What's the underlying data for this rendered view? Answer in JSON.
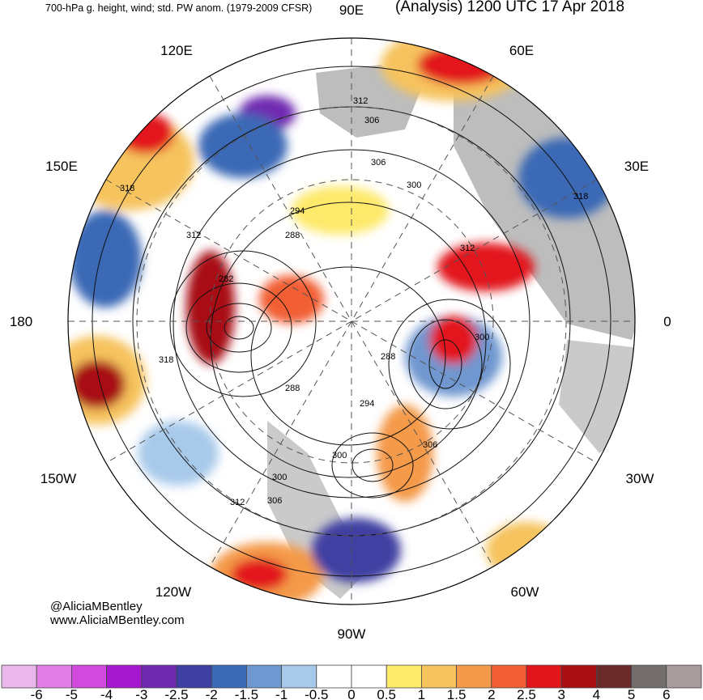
{
  "header": {
    "left": "700-hPa g. height, wind; std. PW anom. (1979-2009 CFSR)",
    "right": "(Analysis) 1200 UTC 17 Apr 2018"
  },
  "longitude_labels": {
    "top": "90E",
    "top_left": "120E",
    "top_right": "60E",
    "upper_left": "150E",
    "upper_right": "30E",
    "left": "180",
    "right": "0",
    "lower_left": "150W",
    "lower_right": "30W",
    "bottom_left": "120W",
    "bottom_right": "60W",
    "bottom": "90W"
  },
  "contour_labels": [
    {
      "text": "312"
    },
    {
      "text": "306"
    },
    {
      "text": "306"
    },
    {
      "text": "300"
    },
    {
      "text": "318"
    },
    {
      "text": "294"
    },
    {
      "text": "288"
    },
    {
      "text": "312"
    },
    {
      "text": "282"
    },
    {
      "text": "318"
    },
    {
      "text": "312"
    },
    {
      "text": "318"
    },
    {
      "text": "288"
    },
    {
      "text": "288"
    },
    {
      "text": "294"
    },
    {
      "text": "300"
    },
    {
      "text": "306"
    },
    {
      "text": "300"
    },
    {
      "text": "306"
    },
    {
      "text": "312"
    },
    {
      "text": "300"
    },
    {
      "text": "306"
    }
  ],
  "credits": {
    "handle": "@AliciaMBentley",
    "website": "www.AliciaMBentley.com"
  },
  "colorbar": {
    "labels": [
      "-6",
      "-5",
      "-4",
      "-3",
      "-2.5",
      "-2",
      "-1.5",
      "-1",
      "-0.5",
      "0",
      "0.5",
      "1",
      "1.5",
      "2",
      "2.5",
      "3",
      "4",
      "5",
      "6"
    ],
    "colors": [
      "#e9b7ea",
      "#e27fe6",
      "#d249e0",
      "#a419cf",
      "#6f29b1",
      "#3f3fa3",
      "#3b69b6",
      "#6f97d0",
      "#a7c9ea",
      "#ffffff",
      "#ffffff",
      "#fde96a",
      "#f6c35d",
      "#f49a4a",
      "#f25e35",
      "#e2151b",
      "#a80e13",
      "#6b2b2b",
      "#756e6e",
      "#a79c9c"
    ]
  },
  "map_colors": {
    "ocean_background": "#ffffff",
    "land_gray": "#bdbdbd",
    "contour": "#111111"
  }
}
